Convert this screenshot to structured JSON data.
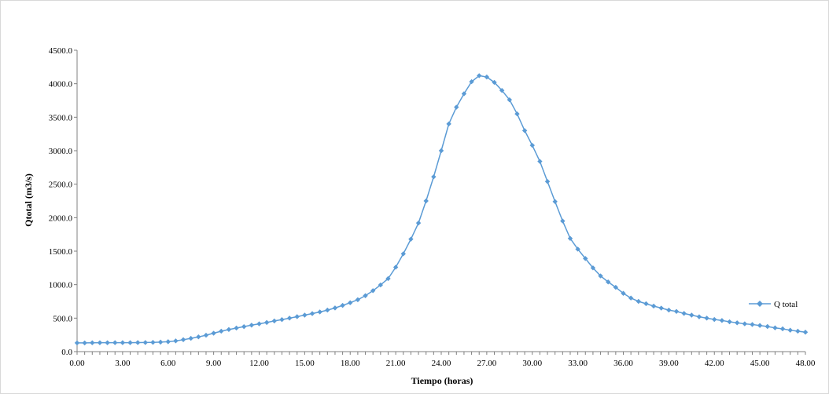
{
  "chart_data": {
    "type": "line",
    "title": "",
    "xlabel": "Tiempo (horas)",
    "ylabel": "Qtotal (m3/s)",
    "xlim": [
      0,
      48
    ],
    "ylim": [
      0,
      4500
    ],
    "x_ticks": [
      "0.00",
      "3.00",
      "6.00",
      "9.00",
      "12.00",
      "15.00",
      "18.00",
      "21.00",
      "24.00",
      "27.00",
      "30.00",
      "33.00",
      "36.00",
      "39.00",
      "42.00",
      "45.00",
      "48.00"
    ],
    "y_ticks": [
      "0.0",
      "500.0",
      "1000.0",
      "1500.0",
      "2000.0",
      "2500.0",
      "3000.0",
      "3500.0",
      "4000.0",
      "4500.0"
    ],
    "grid": false,
    "legend_position": "right",
    "series": [
      {
        "name": "Q total",
        "color": "#5b9bd5",
        "marker": "diamond",
        "x": [
          0,
          0.5,
          1,
          1.5,
          2,
          2.5,
          3,
          3.5,
          4,
          4.5,
          5,
          5.5,
          6,
          6.5,
          7,
          7.5,
          8,
          8.5,
          9,
          9.5,
          10,
          10.5,
          11,
          11.5,
          12,
          12.5,
          13,
          13.5,
          14,
          14.5,
          15,
          15.5,
          16,
          16.5,
          17,
          17.5,
          18,
          18.5,
          19,
          19.5,
          20,
          20.5,
          21,
          21.5,
          22,
          22.5,
          23,
          23.5,
          24,
          24.5,
          25,
          25.5,
          26,
          26.5,
          27,
          27.5,
          28,
          28.5,
          29,
          29.5,
          30,
          30.5,
          31,
          31.5,
          32,
          32.5,
          33,
          33.5,
          34,
          34.5,
          35,
          35.5,
          36,
          36.5,
          37,
          37.5,
          38,
          38.5,
          39,
          39.5,
          40,
          40.5,
          41,
          41.5,
          42,
          42.5,
          43,
          43.5,
          44,
          44.5,
          45,
          45.5,
          46,
          46.5,
          47,
          47.5,
          48
        ],
        "values": [
          130,
          130,
          132,
          133,
          133,
          134,
          134,
          134,
          135,
          136,
          138,
          142,
          148,
          160,
          178,
          198,
          220,
          245,
          275,
          305,
          330,
          352,
          373,
          395,
          415,
          435,
          458,
          478,
          500,
          522,
          545,
          568,
          592,
          620,
          652,
          690,
          730,
          775,
          835,
          910,
          995,
          1090,
          1260,
          1460,
          1680,
          1920,
          2250,
          2610,
          3000,
          3400,
          3650,
          3850,
          4030,
          4120,
          4100,
          4020,
          3900,
          3760,
          3550,
          3300,
          3080,
          2840,
          2540,
          2240,
          1950,
          1690,
          1530,
          1390,
          1250,
          1130,
          1040,
          960,
          870,
          800,
          750,
          715,
          680,
          650,
          620,
          600,
          570,
          545,
          520,
          500,
          480,
          465,
          445,
          430,
          415,
          405,
          390,
          375,
          355,
          340,
          320,
          305,
          290
        ]
      }
    ]
  }
}
